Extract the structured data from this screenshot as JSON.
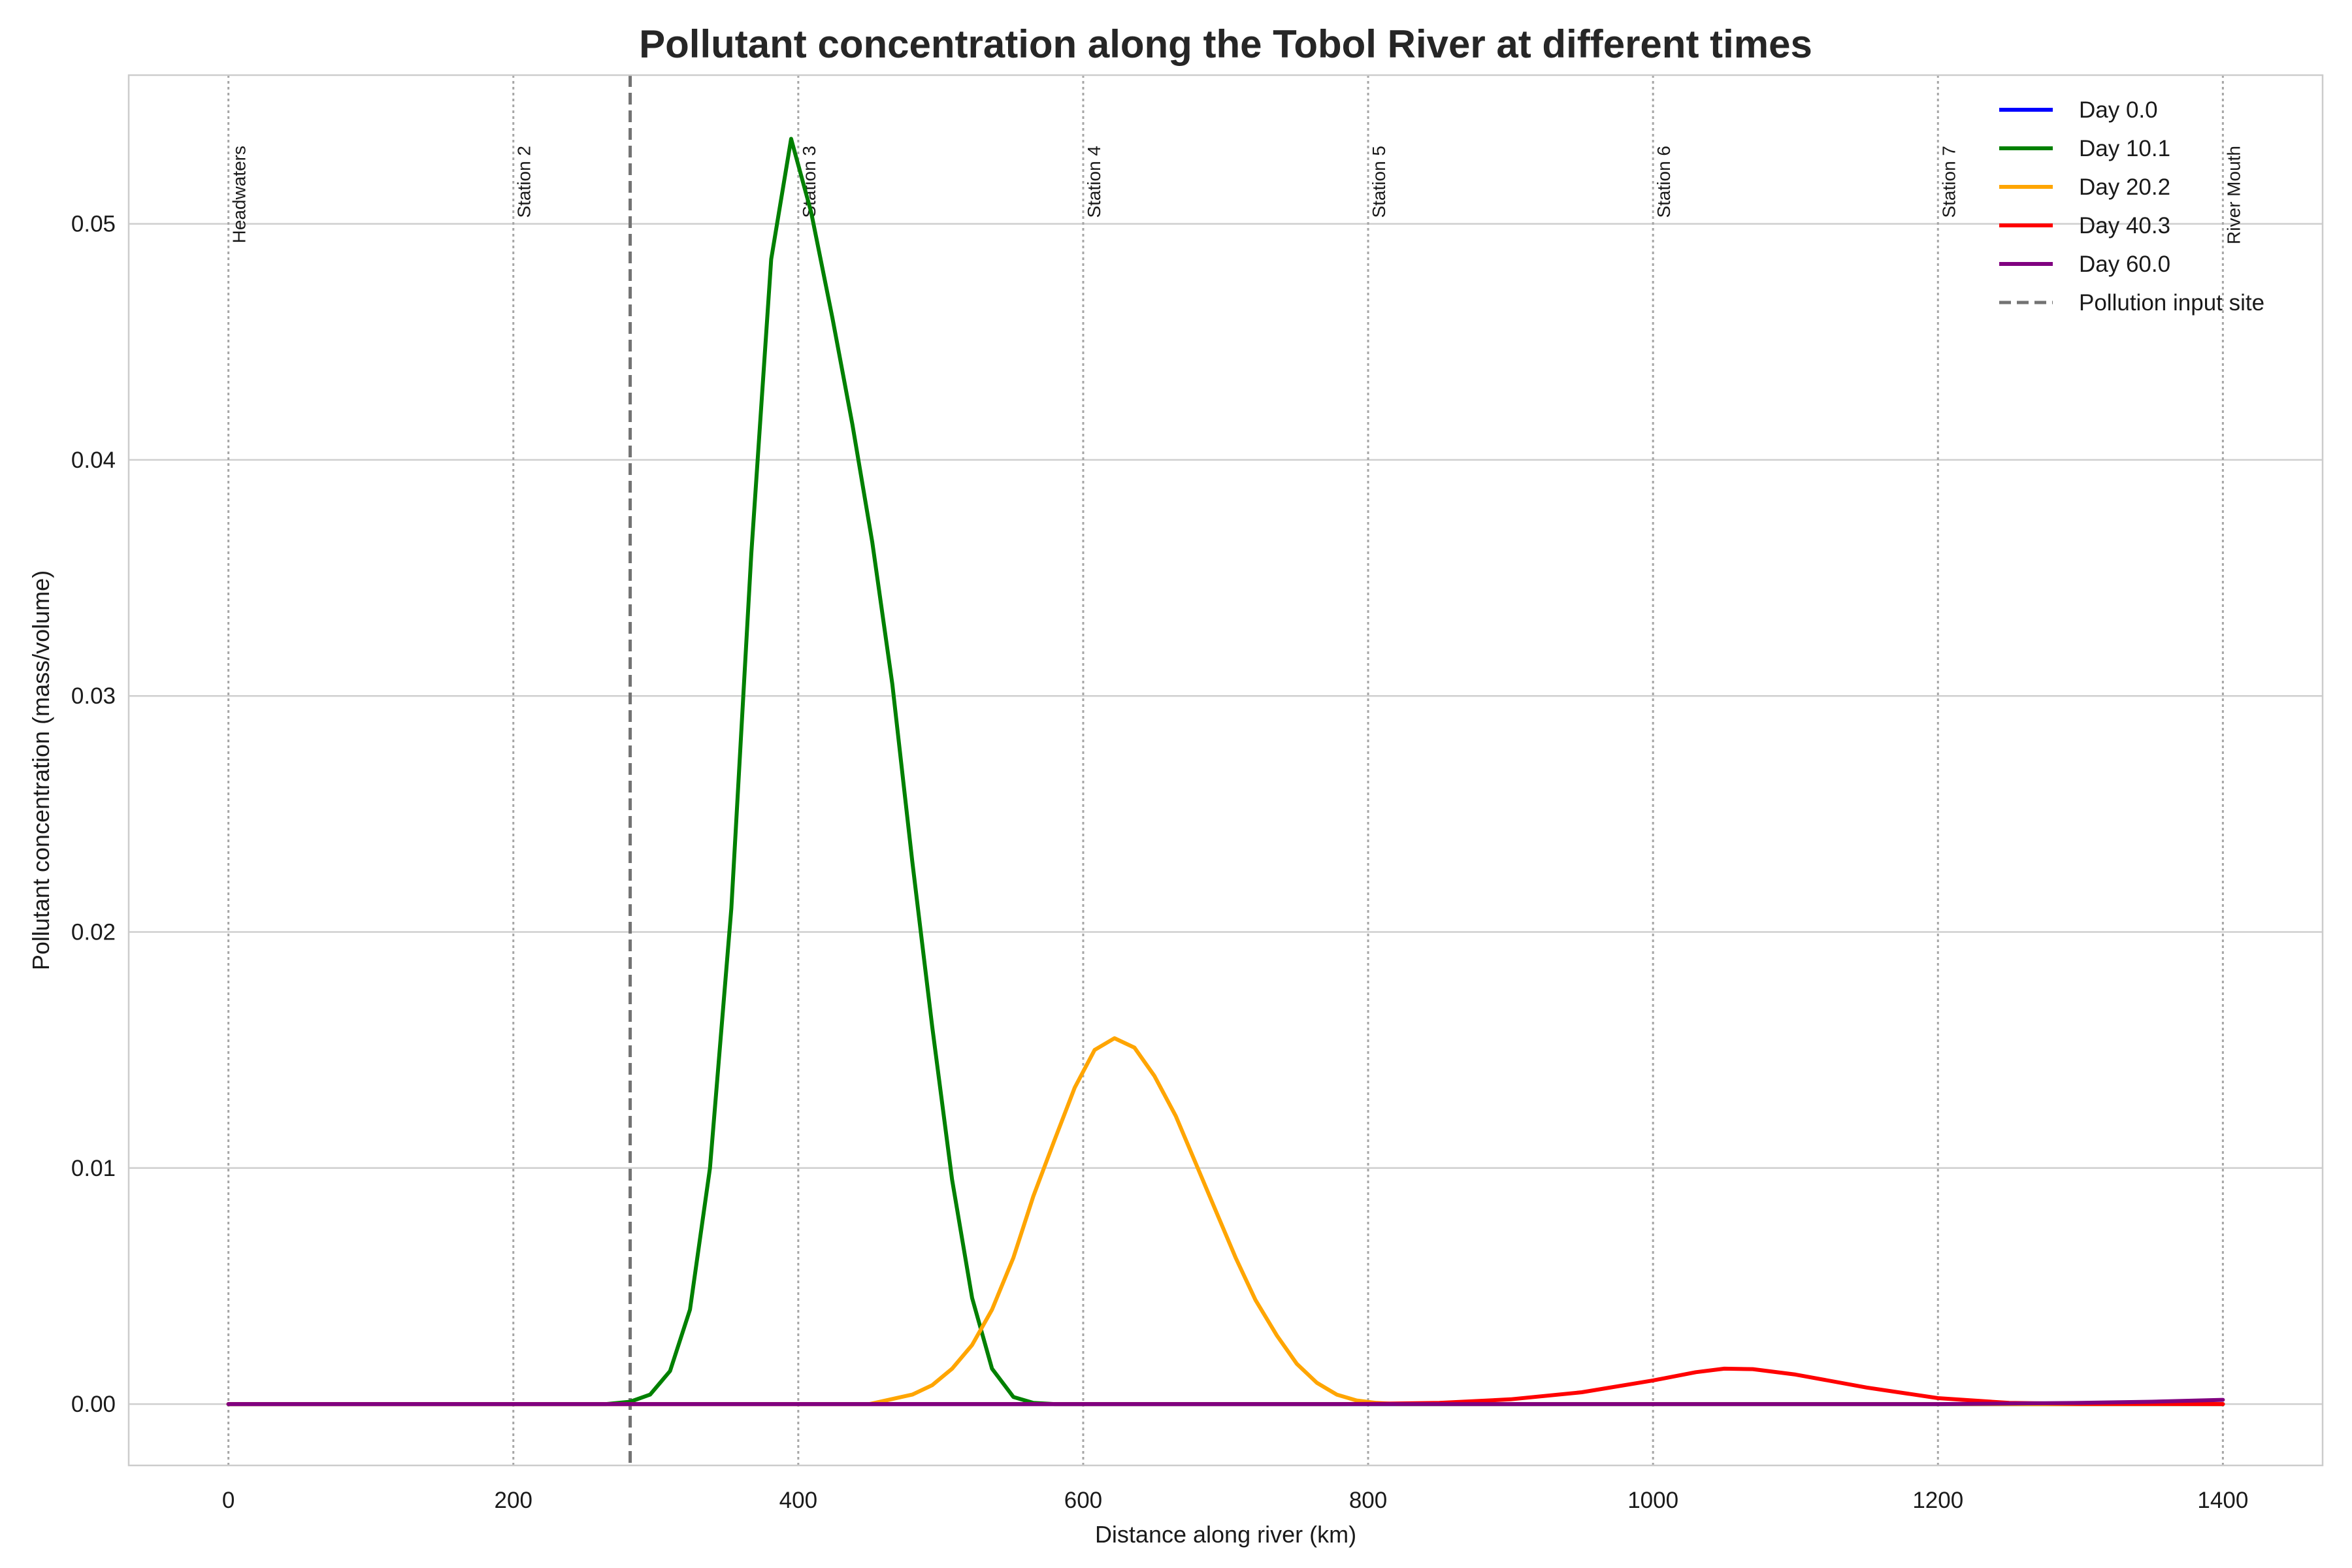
{
  "chart_data": {
    "type": "line",
    "title": "Pollutant concentration along the Tobol River at different times",
    "xlabel": "Distance along river (km)",
    "ylabel": "Pollutant concentration (mass/volume)",
    "xlim": [
      -70,
      1470
    ],
    "ylim": [
      -0.0026,
      0.0563
    ],
    "xticks": [
      0,
      200,
      400,
      600,
      800,
      1000,
      1200,
      1400
    ],
    "xtick_labels": [
      "0",
      "200",
      "400",
      "600",
      "800",
      "1000",
      "1200",
      "1400"
    ],
    "yticks": [
      0.0,
      0.01,
      0.02,
      0.03,
      0.04,
      0.05
    ],
    "ytick_labels": [
      "0.00",
      "0.01",
      "0.02",
      "0.03",
      "0.04",
      "0.05"
    ],
    "grid": true,
    "legend_position": "top-right",
    "stations": [
      {
        "name": "Headwaters",
        "x": 0
      },
      {
        "name": "Station 2",
        "x": 200
      },
      {
        "name": "Station 3",
        "x": 400
      },
      {
        "name": "Station 4",
        "x": 600
      },
      {
        "name": "Station 5",
        "x": 800
      },
      {
        "name": "Station 6",
        "x": 1000
      },
      {
        "name": "Station 7",
        "x": 1200
      },
      {
        "name": "River Mouth",
        "x": 1400
      }
    ],
    "pollution_input": {
      "name": "Pollution input site",
      "x": 282,
      "color": "#737373"
    },
    "series": [
      {
        "name": "Day 0.0",
        "color": "#0000ff",
        "x": [
          0,
          1400
        ],
        "y": [
          0,
          0
        ]
      },
      {
        "name": "Day 10.1",
        "color": "#008000",
        "x": [
          0,
          265,
          282,
          296,
          310,
          324,
          338,
          353,
          367,
          381,
          395,
          409,
          424,
          438,
          452,
          466,
          480,
          494,
          508,
          522,
          536,
          551,
          565,
          580,
          1400
        ],
        "y": [
          0,
          0,
          0.0001,
          0.0004,
          0.0014,
          0.004,
          0.01,
          0.021,
          0.036,
          0.0485,
          0.0536,
          0.0505,
          0.046,
          0.0415,
          0.0365,
          0.0305,
          0.023,
          0.016,
          0.0095,
          0.0045,
          0.0015,
          0.0003,
          5e-05,
          0,
          0
        ]
      },
      {
        "name": "Day 20.2",
        "color": "#ffa500",
        "x": [
          0,
          450,
          480,
          494,
          508,
          522,
          536,
          551,
          565,
          580,
          594,
          608,
          622,
          636,
          650,
          665,
          679,
          693,
          707,
          721,
          736,
          750,
          764,
          778,
          792,
          806,
          820,
          1400
        ],
        "y": [
          0,
          0,
          0.0004,
          0.0008,
          0.0015,
          0.0025,
          0.004,
          0.0062,
          0.0088,
          0.0112,
          0.0134,
          0.015,
          0.0155,
          0.0151,
          0.0139,
          0.0122,
          0.0102,
          0.0082,
          0.0062,
          0.0044,
          0.0029,
          0.0017,
          0.0009,
          0.0004,
          0.00015,
          5e-05,
          0,
          0
        ]
      },
      {
        "name": "Day 40.3",
        "color": "#ff0000",
        "x": [
          0,
          780,
          800,
          850,
          900,
          950,
          1000,
          1030,
          1050,
          1070,
          1100,
          1150,
          1200,
          1250,
          1300,
          1400
        ],
        "y": [
          0,
          0,
          1e-05,
          5e-05,
          0.0002,
          0.0005,
          0.001,
          0.00135,
          0.0015,
          0.00148,
          0.00125,
          0.0007,
          0.00025,
          5e-05,
          1e-05,
          0
        ]
      },
      {
        "name": "Day 60.0",
        "color": "#800080",
        "x": [
          0,
          1200,
          1250,
          1300,
          1350,
          1400
        ],
        "y": [
          0,
          0,
          2e-05,
          5e-05,
          0.0001,
          0.00018
        ]
      }
    ]
  }
}
